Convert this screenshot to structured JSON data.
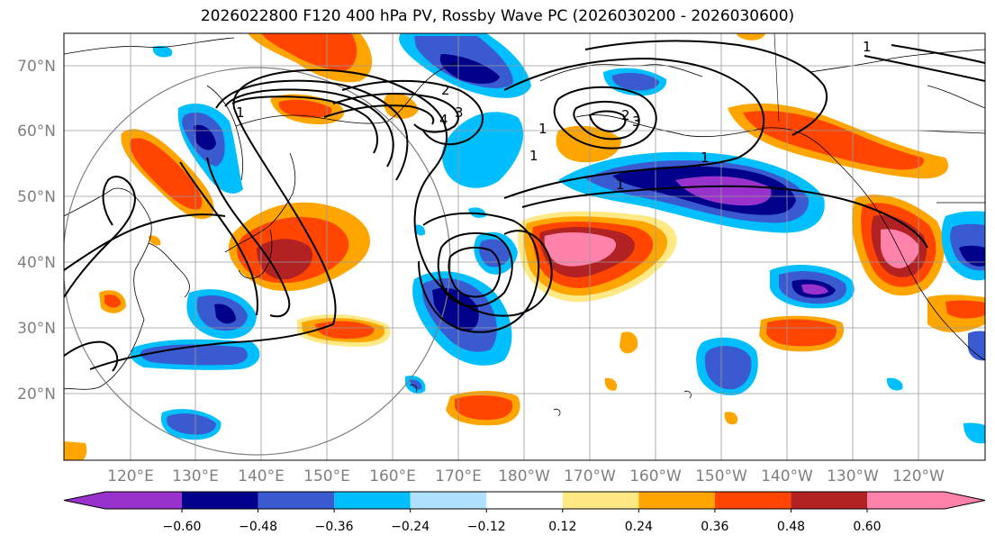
{
  "title": "2026022800 F120 400 hPa PV, Rossby Wave PC (2026030200 - 2026030600)",
  "lat_labels": [
    "70°N",
    "60°N",
    "50°N",
    "40°N",
    "30°N",
    "20°N"
  ],
  "lon_labels": [
    "120°E",
    "130°E",
    "140°E",
    "150°E",
    "160°E",
    "170°E",
    "180°W",
    "170°W",
    "160°W",
    "150°W",
    "140°W",
    "130°W",
    "120°W"
  ],
  "colorbar": {
    "ticks": [
      "−0.60",
      "−0.48",
      "−0.36",
      "−0.24",
      "−0.12",
      "0.12",
      "0.24",
      "0.36",
      "0.48",
      "0.60"
    ],
    "colors": [
      "#9932cc",
      "#00008b",
      "#3a5acf",
      "#00bfff",
      "#b0e2ff",
      "#ffffff",
      "#ffe985",
      "#ffa500",
      "#ff4500",
      "#b22222",
      "#ff82ab"
    ]
  },
  "contour_labels": [
    "1",
    "2",
    "3",
    "4",
    "1",
    "2",
    "3",
    "1",
    "1",
    "1",
    "1"
  ]
}
